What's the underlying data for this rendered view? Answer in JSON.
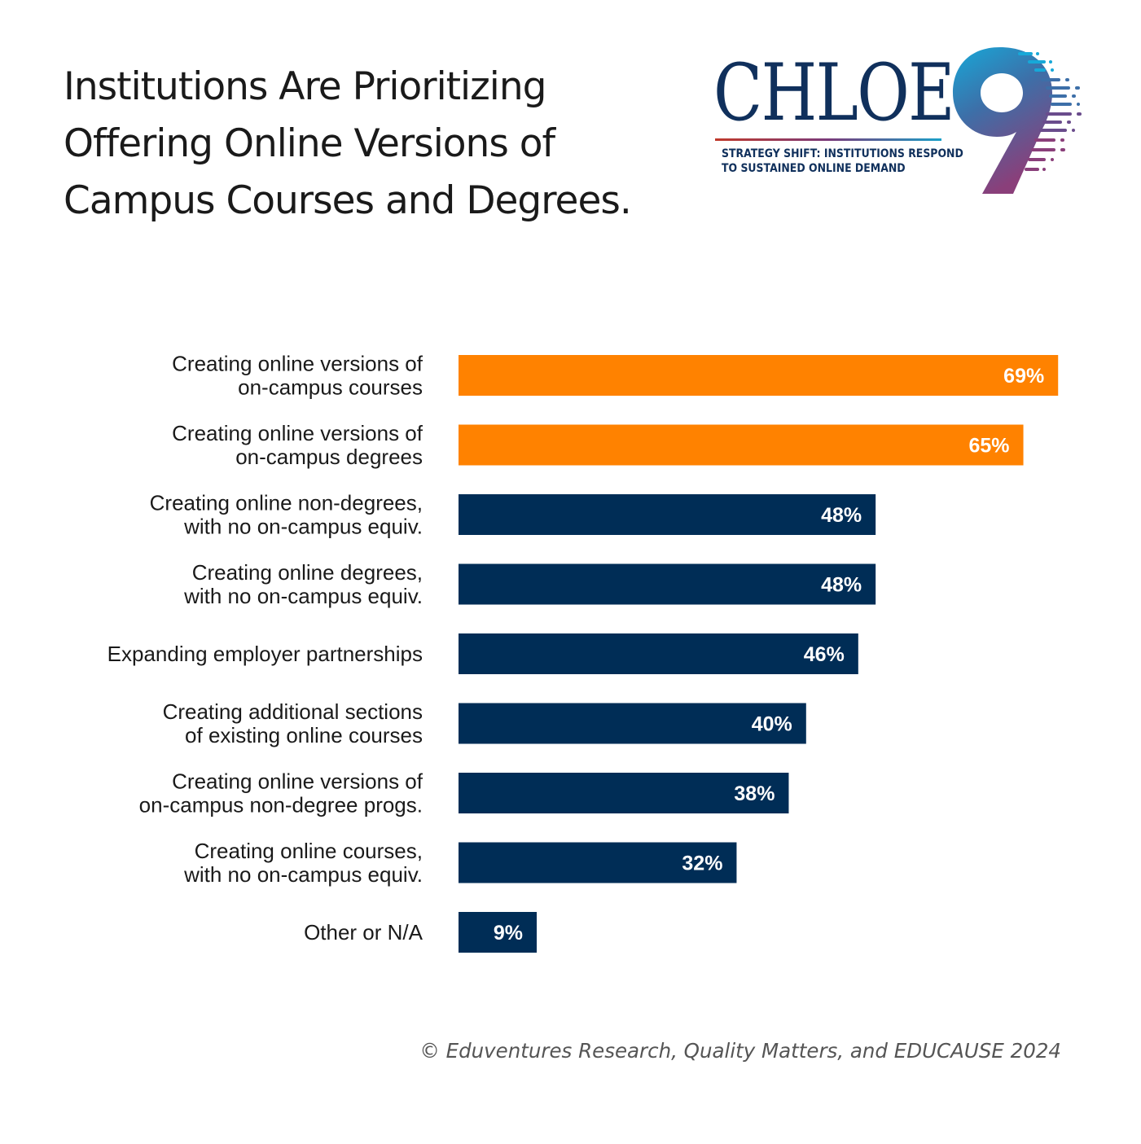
{
  "title_lines": [
    "Institutions Are Prioritizing",
    "Offering Online Versions of",
    "Campus Courses and Degrees."
  ],
  "logo": {
    "wordmark": "CHLOE",
    "numeral": "9",
    "subtitle_lines": [
      "STRATEGY SHIFT: INSTITUTIONS RESPOND",
      "TO SUSTAINED ONLINE DEMAND"
    ]
  },
  "colors": {
    "highlight": "#ff8200",
    "default": "#002d56",
    "label_text": "#1a1a1a",
    "value_text": "#ffffff"
  },
  "chart_data": {
    "type": "bar",
    "orientation": "horizontal",
    "categories": [
      [
        "Creating online versions of",
        "on-campus courses"
      ],
      [
        "Creating online versions of",
        "on-campus degrees"
      ],
      [
        "Creating online non-degrees,",
        "with no on-campus equiv."
      ],
      [
        "Creating online degrees,",
        "with no on-campus equiv."
      ],
      [
        "Expanding employer partnerships"
      ],
      [
        "Creating additional sections",
        "of existing online courses"
      ],
      [
        "Creating online versions of",
        "on-campus non-degree progs."
      ],
      [
        "Creating online courses,",
        "with no on-campus equiv."
      ],
      [
        "Other or N/A"
      ]
    ],
    "values": [
      69,
      65,
      48,
      48,
      46,
      40,
      38,
      32,
      9
    ],
    "value_labels": [
      "69%",
      "65%",
      "48%",
      "48%",
      "46%",
      "40%",
      "38%",
      "32%",
      "9%"
    ],
    "highlighted": [
      true,
      true,
      false,
      false,
      false,
      false,
      false,
      false,
      false
    ],
    "unit": "%",
    "xlim": [
      0,
      100
    ],
    "title": "Institutions Are Prioritizing Offering Online Versions of Campus Courses and Degrees.",
    "xlabel": "",
    "ylabel": "",
    "grid": false,
    "legend": "none"
  },
  "footer": "© Eduventures Research, Quality Matters, and EDUCAUSE 2024"
}
